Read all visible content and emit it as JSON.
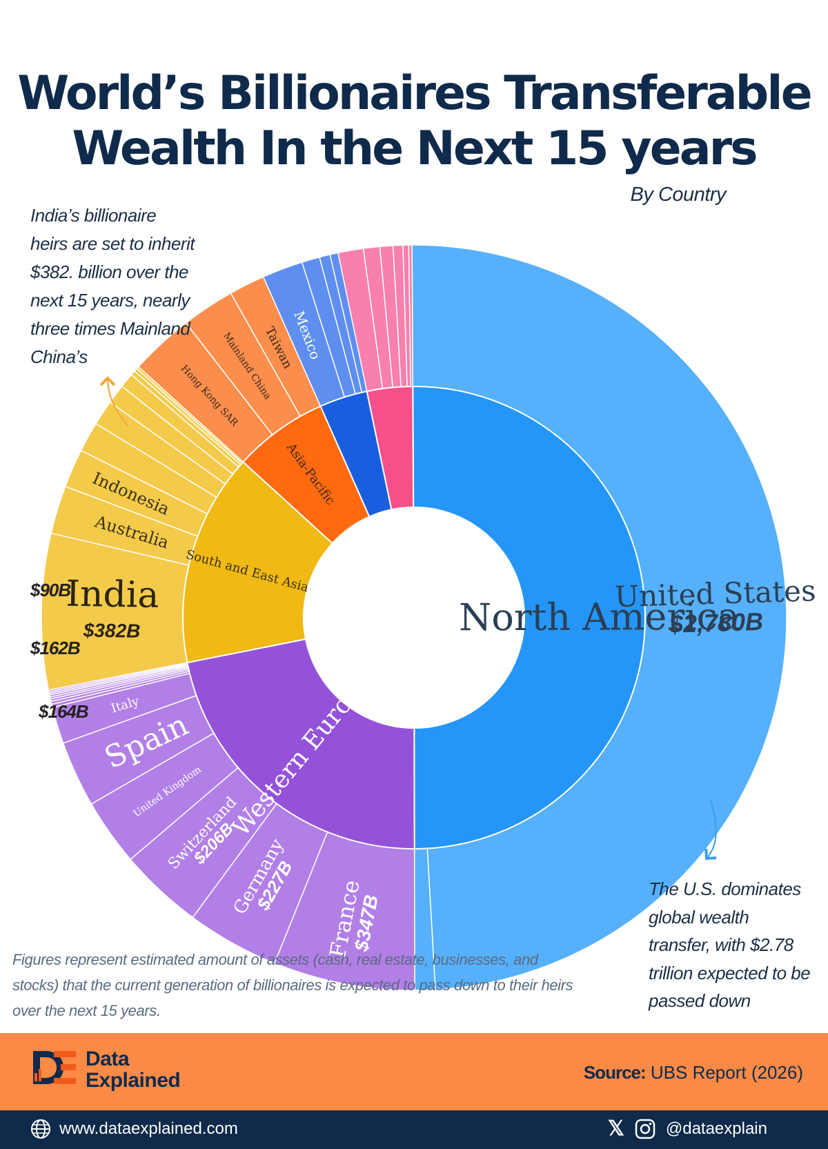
{
  "header": {
    "title_line1": "World’s Billionaires Transferable",
    "title_line2": "Wealth In the Next 15 years",
    "subtitle": "By Country"
  },
  "annotations": {
    "india_note": "India’s billionaire heirs are set to inherit $382. billion over the next 15 years, nearly three times Mainland China’s",
    "us_note": "The U.S. dominates global wealth transfer, with $2.78 trillion expected to be passed down",
    "footnote": "Figures represent estimated amount of assets (cash, real estate, businesses, and stocks) that the current generation of billionaires is expected to pass down to their heirs over the next 15 years."
  },
  "side_values": {
    "italy": "$90B",
    "spain": "$162B",
    "uk": "$164B"
  },
  "colors": {
    "north_america_inner": "#2596f7",
    "north_america_outer": "#56b0fb",
    "western_europe_inner": "#9452d9",
    "western_europe_outer": "#b27fe6",
    "south_east_asia_inner": "#f0b913",
    "south_east_asia_outer": "#f4ca4a",
    "asia_pacific_inner": "#ff6a10",
    "asia_pacific_outer": "#fb8e4d",
    "latin_america_inner": "#1a5ee0",
    "latin_america_outer": "#5e8eef",
    "pink_inner": "#f5508a",
    "pink_outer": "#f97fac",
    "footer_orange": "#fb8a47",
    "footer_navy": "#0f2a4a"
  },
  "chart_data": {
    "type": "sunburst",
    "unit": "billion USD",
    "regions": [
      {
        "name": "North America",
        "key": "na",
        "countries": [
          {
            "name": "United States",
            "value": 2780,
            "label": "United States",
            "value_label": "$2,780B"
          },
          {
            "name": "",
            "value": 50,
            "label": ""
          }
        ]
      },
      {
        "name": "Western Europe",
        "key": "we",
        "countries": [
          {
            "name": "France",
            "value": 347,
            "label": "France",
            "value_label": "$347B"
          },
          {
            "name": "Germany",
            "value": 227,
            "label": "Germany",
            "value_label": "$227B"
          },
          {
            "name": "Switzerland",
            "value": 206,
            "label": "Switzerland",
            "value_label": "$206B"
          },
          {
            "name": "United Kingdom",
            "value": 164,
            "label": "United Kingdom"
          },
          {
            "name": "Spain",
            "value": 162,
            "label": "Spain"
          },
          {
            "name": "Italy",
            "value": 90,
            "label": "Italy"
          },
          {
            "name": "",
            "value": 8,
            "label": ""
          },
          {
            "name": "",
            "value": 7,
            "label": ""
          },
          {
            "name": "",
            "value": 6,
            "label": ""
          },
          {
            "name": "",
            "value": 5,
            "label": ""
          },
          {
            "name": "",
            "value": 5,
            "label": ""
          },
          {
            "name": "",
            "value": 4,
            "label": ""
          },
          {
            "name": "",
            "value": 4,
            "label": ""
          },
          {
            "name": "",
            "value": 4,
            "label": ""
          }
        ]
      },
      {
        "name": "South and East Asia",
        "key": "sea",
        "countries": [
          {
            "name": "India",
            "value": 382,
            "label": "India",
            "value_label": "$382B"
          },
          {
            "name": "Australia",
            "value": 118,
            "label": "Australia"
          },
          {
            "name": "Indonesia",
            "value": 95,
            "label": "Indonesia"
          },
          {
            "name": "",
            "value": 74,
            "label": ""
          },
          {
            "name": "",
            "value": 62,
            "label": ""
          },
          {
            "name": "",
            "value": 48,
            "label": ""
          },
          {
            "name": "",
            "value": 36,
            "label": ""
          },
          {
            "name": "",
            "value": 12,
            "label": ""
          },
          {
            "name": "",
            "value": 8,
            "label": ""
          },
          {
            "name": "",
            "value": 6,
            "label": ""
          }
        ]
      },
      {
        "name": "Asia-Pacific",
        "key": "ap",
        "countries": [
          {
            "name": "Hong Kong SAR",
            "value": 156,
            "label": "Hong Kong SAR"
          },
          {
            "name": "Mainland China",
            "value": 130,
            "label": "Mainland China"
          },
          {
            "name": "Taiwan",
            "value": 88,
            "label": "Taiwan"
          }
        ]
      },
      {
        "name": "",
        "key": "la",
        "countries": [
          {
            "name": "Mexico",
            "value": 100,
            "label": "Mexico"
          },
          {
            "name": "",
            "value": 44,
            "label": ""
          },
          {
            "name": "",
            "value": 26,
            "label": ""
          },
          {
            "name": "",
            "value": 20,
            "label": ""
          }
        ]
      },
      {
        "name": "",
        "key": "pk",
        "countries": [
          {
            "name": "",
            "value": 62,
            "label": ""
          },
          {
            "name": "",
            "value": 40,
            "label": ""
          },
          {
            "name": "",
            "value": 32,
            "label": ""
          },
          {
            "name": "",
            "value": 24,
            "label": ""
          },
          {
            "name": "",
            "value": 14,
            "label": ""
          },
          {
            "name": "",
            "value": 8,
            "label": ""
          }
        ]
      }
    ]
  },
  "footer": {
    "brand_line1": "Data",
    "brand_line2": "Explained",
    "source_label": "Source:",
    "source_value": "UBS Report (2026)",
    "website": "www.dataexplained.com",
    "handle": "@dataexplain"
  }
}
